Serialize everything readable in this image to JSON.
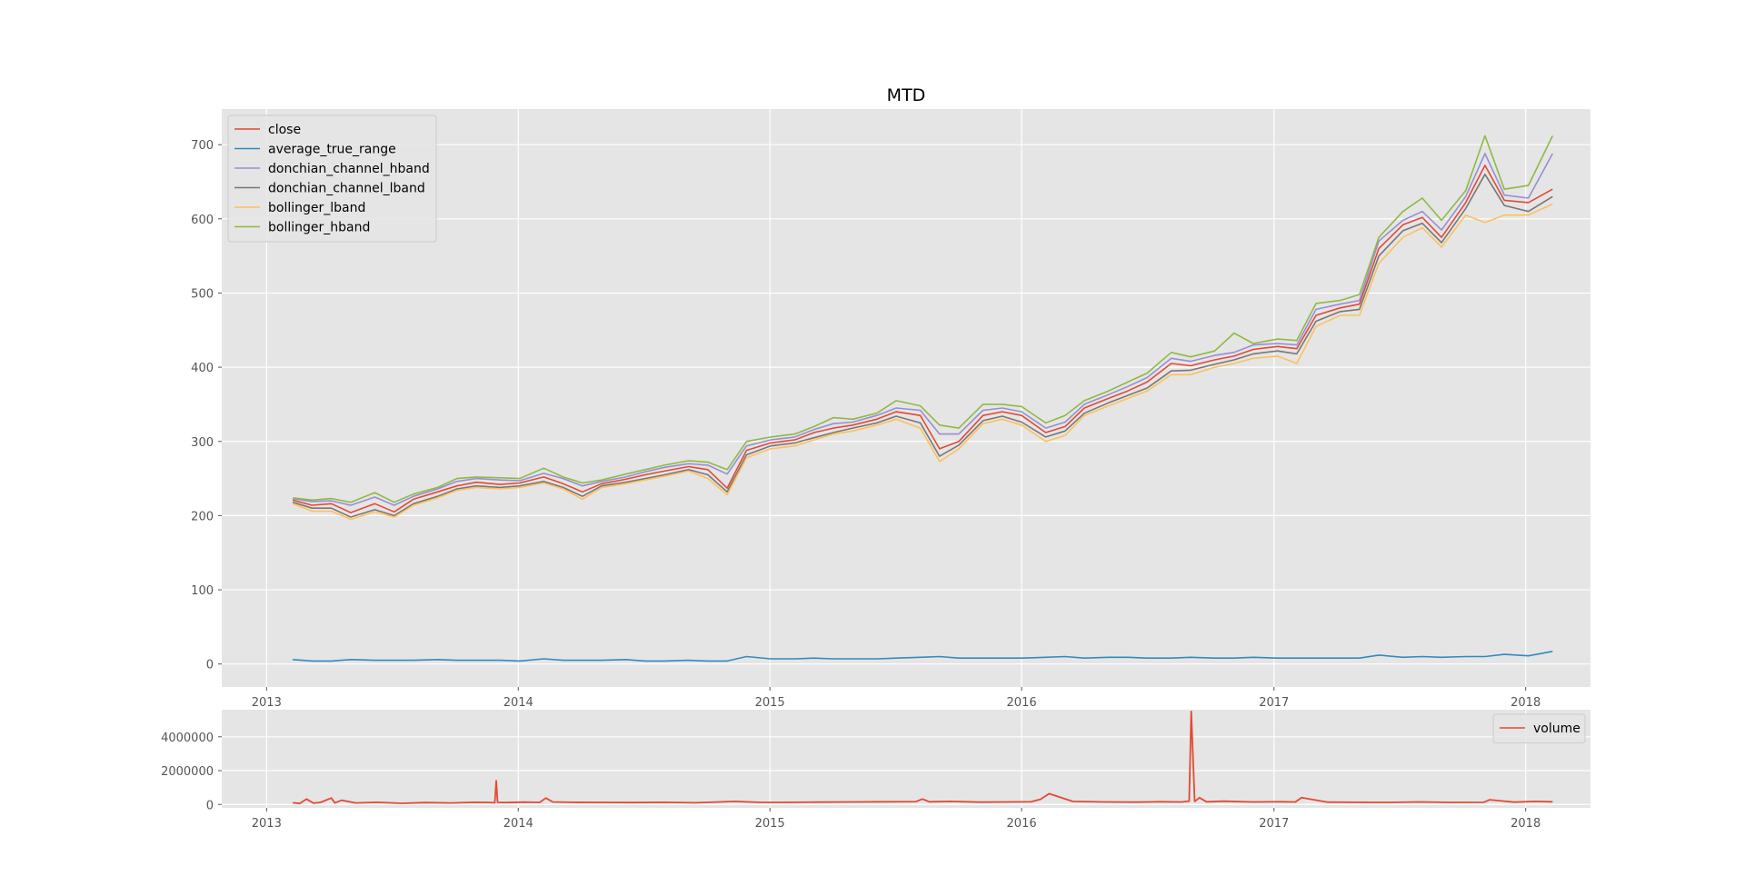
{
  "chart_data": [
    {
      "type": "line",
      "title": "MTD",
      "xlabel": "",
      "ylabel": "",
      "x_ticks": [
        "2013",
        "2014",
        "2015",
        "2016",
        "2017",
        "2018"
      ],
      "y_ticks": [
        "0",
        "100",
        "200",
        "300",
        "400",
        "500",
        "600",
        "700"
      ],
      "xlim": [
        "2012-10-28",
        "2018-04-05"
      ],
      "ylim": [
        -31,
        748
      ],
      "grid": true,
      "legend_position": "upper-left",
      "x": [
        "2013-02-08",
        "2013-03-08",
        "2013-04-05",
        "2013-05-03",
        "2013-06-07",
        "2013-07-05",
        "2013-08-02",
        "2013-09-06",
        "2013-10-04",
        "2013-11-01",
        "2013-12-06",
        "2014-01-03",
        "2014-02-07",
        "2014-03-07",
        "2014-04-04",
        "2014-05-02",
        "2014-06-06",
        "2014-07-04",
        "2014-08-01",
        "2014-09-05",
        "2014-10-03",
        "2014-10-31",
        "2014-11-28",
        "2015-01-02",
        "2015-02-06",
        "2015-03-06",
        "2015-04-03",
        "2015-05-01",
        "2015-06-05",
        "2015-07-03",
        "2015-08-07",
        "2015-09-04",
        "2015-10-02",
        "2015-11-06",
        "2015-12-04",
        "2016-01-01",
        "2016-02-05",
        "2016-03-04",
        "2016-04-01",
        "2016-05-06",
        "2016-06-03",
        "2016-07-01",
        "2016-08-05",
        "2016-09-02",
        "2016-10-07",
        "2016-11-04",
        "2016-12-02",
        "2017-01-06",
        "2017-02-03",
        "2017-03-03",
        "2017-04-07",
        "2017-05-05",
        "2017-06-02",
        "2017-07-07",
        "2017-08-04",
        "2017-09-01",
        "2017-10-06",
        "2017-11-03",
        "2017-12-01",
        "2018-01-05",
        "2018-02-09"
      ],
      "series": [
        {
          "name": "close",
          "color": "#E24A33",
          "values": [
            221,
            214,
            216,
            204,
            216,
            205,
            222,
            232,
            240,
            245,
            242,
            244,
            252,
            243,
            232,
            243,
            249,
            255,
            260,
            266,
            262,
            237,
            288,
            298,
            302,
            312,
            318,
            322,
            330,
            340,
            335,
            290,
            300,
            335,
            340,
            335,
            312,
            320,
            345,
            358,
            368,
            380,
            405,
            402,
            410,
            415,
            424,
            428,
            425,
            470,
            480,
            485,
            560,
            592,
            602,
            575,
            622,
            672,
            625,
            622,
            640
          ]
        },
        {
          "name": "average_true_range",
          "color": "#348ABD",
          "values": [
            6,
            4,
            4,
            6,
            5,
            5,
            5,
            6,
            5,
            5,
            5,
            4,
            7,
            5,
            5,
            5,
            6,
            4,
            4,
            5,
            4,
            4,
            10,
            7,
            7,
            8,
            7,
            7,
            7,
            8,
            9,
            10,
            8,
            8,
            8,
            8,
            9,
            10,
            8,
            9,
            9,
            8,
            8,
            9,
            8,
            8,
            9,
            8,
            8,
            8,
            8,
            8,
            12,
            9,
            10,
            9,
            10,
            10,
            13,
            11,
            17
          ]
        },
        {
          "name": "donchian_channel_hband",
          "color": "#988ED5",
          "values": [
            223,
            219,
            220,
            214,
            225,
            214,
            226,
            236,
            246,
            250,
            248,
            247,
            257,
            250,
            240,
            246,
            252,
            259,
            265,
            270,
            268,
            256,
            294,
            302,
            306,
            316,
            324,
            326,
            335,
            345,
            342,
            310,
            310,
            342,
            345,
            340,
            318,
            326,
            350,
            363,
            374,
            386,
            412,
            408,
            416,
            420,
            430,
            432,
            430,
            478,
            485,
            490,
            570,
            598,
            610,
            585,
            630,
            688,
            632,
            628,
            688
          ]
        },
        {
          "name": "donchian_channel_lband",
          "color": "#777777",
          "values": [
            218,
            210,
            210,
            198,
            208,
            200,
            216,
            226,
            236,
            240,
            238,
            240,
            246,
            238,
            226,
            240,
            245,
            250,
            255,
            262,
            255,
            232,
            282,
            294,
            298,
            305,
            312,
            318,
            325,
            334,
            325,
            280,
            295,
            328,
            334,
            326,
            306,
            314,
            338,
            352,
            362,
            372,
            395,
            396,
            404,
            410,
            418,
            422,
            418,
            462,
            475,
            478,
            550,
            584,
            594,
            568,
            614,
            660,
            618,
            610,
            630
          ]
        },
        {
          "name": "bollinger_lband",
          "color": "#FBC15E",
          "values": [
            216,
            206,
            206,
            195,
            205,
            198,
            214,
            224,
            234,
            238,
            236,
            238,
            244,
            236,
            222,
            238,
            243,
            248,
            253,
            260,
            250,
            228,
            278,
            290,
            294,
            302,
            310,
            314,
            322,
            330,
            318,
            273,
            290,
            324,
            330,
            322,
            300,
            308,
            335,
            348,
            358,
            368,
            390,
            390,
            400,
            405,
            412,
            415,
            405,
            455,
            470,
            470,
            540,
            575,
            588,
            562,
            605,
            595,
            605,
            605,
            620
          ]
        },
        {
          "name": "bollinger_hband",
          "color": "#8EBA42",
          "values": [
            224,
            221,
            223,
            218,
            231,
            218,
            229,
            238,
            250,
            252,
            251,
            250,
            264,
            252,
            244,
            248,
            256,
            262,
            268,
            274,
            272,
            262,
            300,
            306,
            310,
            320,
            332,
            330,
            338,
            355,
            348,
            322,
            318,
            350,
            350,
            347,
            325,
            335,
            355,
            368,
            380,
            392,
            420,
            414,
            422,
            446,
            432,
            438,
            436,
            486,
            490,
            498,
            575,
            610,
            628,
            598,
            638,
            712,
            640,
            645,
            712
          ]
        }
      ]
    },
    {
      "type": "line",
      "title": "",
      "xlabel": "",
      "ylabel": "",
      "x_ticks": [
        "2013",
        "2014",
        "2015",
        "2016",
        "2017",
        "2018"
      ],
      "y_ticks": [
        "0",
        "2000000",
        "4000000"
      ],
      "xlim": [
        "2012-10-28",
        "2018-04-05"
      ],
      "ylim": [
        -200000,
        5600000
      ],
      "grid": true,
      "legend_position": "upper-right",
      "series": [
        {
          "name": "volume",
          "color": "#E24A33",
          "x": [
            "2013-02-08",
            "2013-02-18",
            "2013-02-28",
            "2013-03-10",
            "2013-03-20",
            "2013-04-05",
            "2013-04-10",
            "2013-04-20",
            "2013-05-10",
            "2013-06-10",
            "2013-07-15",
            "2013-08-20",
            "2013-09-25",
            "2013-10-30",
            "2013-11-15",
            "2013-11-28",
            "2013-11-30",
            "2013-12-02",
            "2013-12-15",
            "2014-01-10",
            "2014-02-01",
            "2014-02-10",
            "2014-02-20",
            "2014-03-20",
            "2014-05-01",
            "2014-06-15",
            "2014-08-01",
            "2014-09-15",
            "2014-10-20",
            "2014-11-10",
            "2014-12-20",
            "2015-02-01",
            "2015-03-15",
            "2015-05-01",
            "2015-06-15",
            "2015-08-01",
            "2015-08-10",
            "2015-08-20",
            "2015-09-20",
            "2015-11-01",
            "2015-12-15",
            "2016-01-15",
            "2016-01-28",
            "2016-02-10",
            "2016-03-15",
            "2016-05-01",
            "2016-06-15",
            "2016-07-20",
            "2016-08-20",
            "2016-08-31",
            "2016-09-03",
            "2016-09-08",
            "2016-09-15",
            "2016-09-25",
            "2016-10-20",
            "2016-12-01",
            "2017-01-10",
            "2017-02-01",
            "2017-02-10",
            "2017-03-20",
            "2017-05-01",
            "2017-06-15",
            "2017-08-01",
            "2017-09-15",
            "2017-11-01",
            "2017-11-10",
            "2017-12-15",
            "2018-01-15",
            "2018-02-09"
          ],
          "values": [
            100000,
            60000,
            320000,
            80000,
            120000,
            380000,
            90000,
            250000,
            90000,
            130000,
            70000,
            110000,
            90000,
            130000,
            120000,
            100000,
            1400000,
            120000,
            110000,
            140000,
            120000,
            380000,
            150000,
            130000,
            120000,
            110000,
            130000,
            100000,
            150000,
            180000,
            120000,
            130000,
            140000,
            150000,
            160000,
            170000,
            320000,
            160000,
            180000,
            140000,
            150000,
            160000,
            300000,
            640000,
            180000,
            150000,
            140000,
            160000,
            150000,
            200000,
            5500000,
            180000,
            400000,
            160000,
            190000,
            150000,
            160000,
            150000,
            400000,
            140000,
            130000,
            120000,
            150000,
            120000,
            130000,
            280000,
            140000,
            180000,
            160000
          ]
        }
      ]
    }
  ]
}
